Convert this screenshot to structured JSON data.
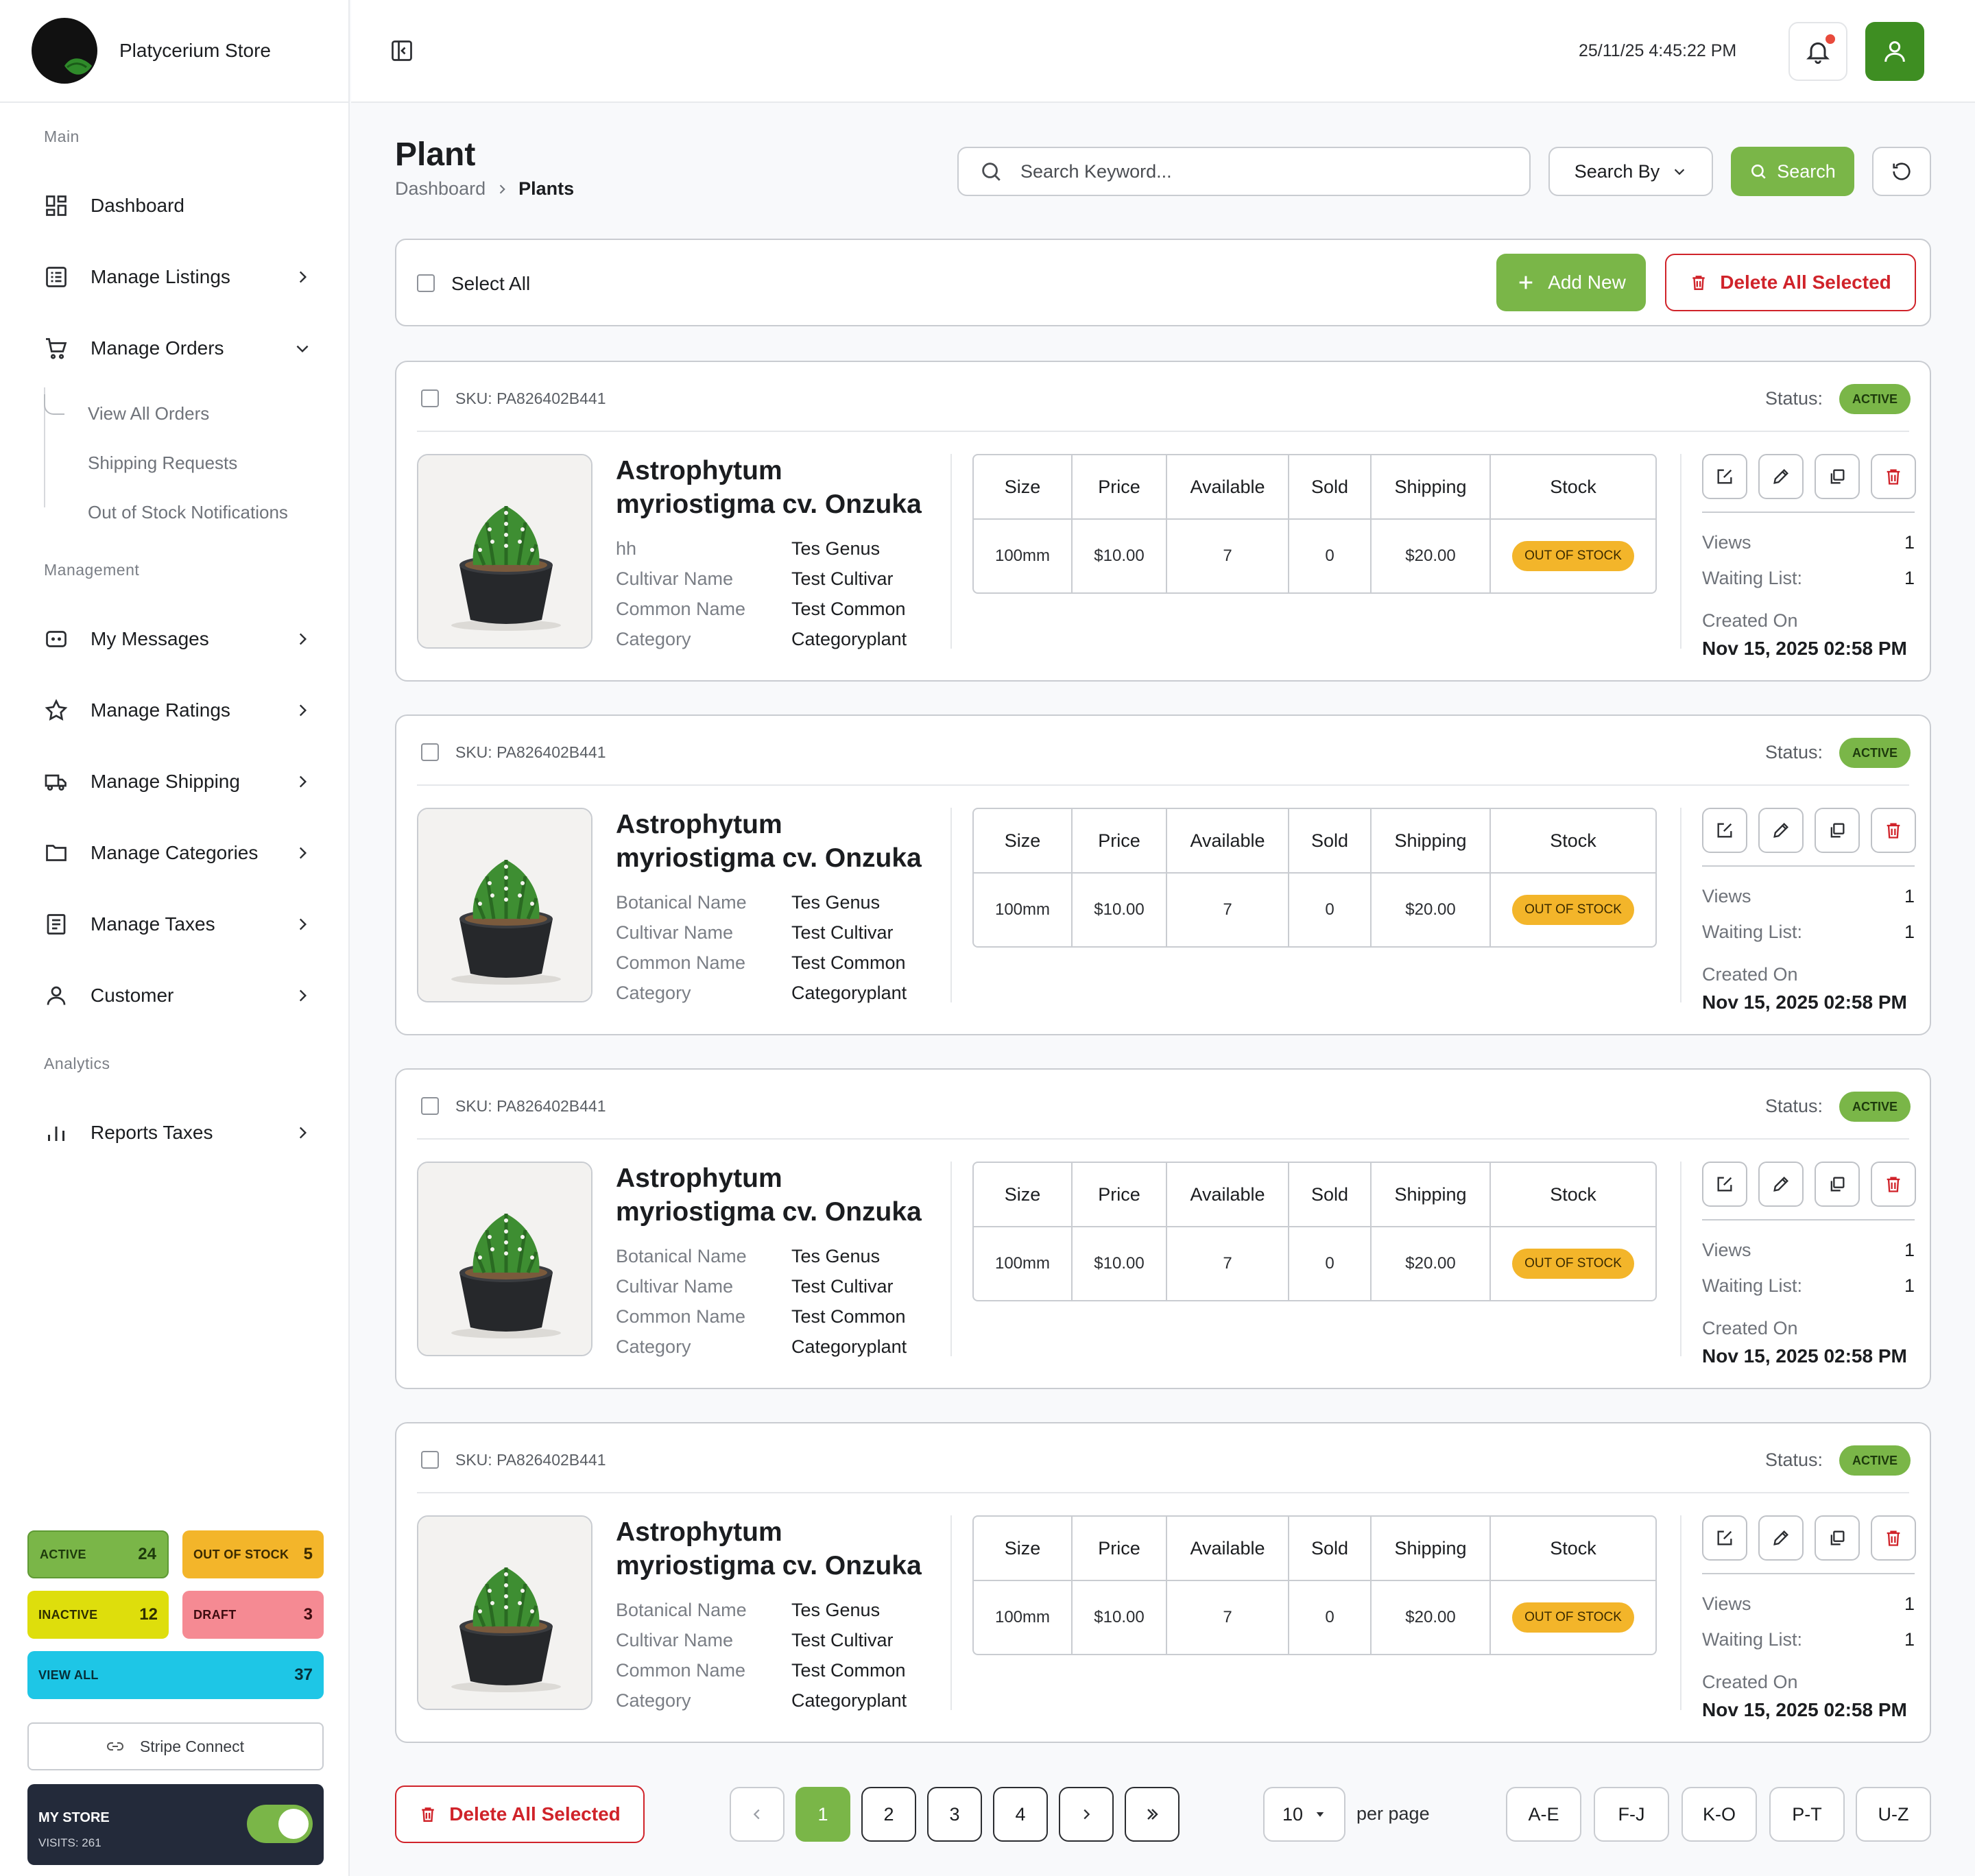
{
  "app": {
    "store_name": "Platycerium Store"
  },
  "topbar": {
    "datetime": "25/11/25 4:45:22 PM"
  },
  "sidebar": {
    "sections": {
      "main": "Main",
      "management": "Management",
      "analytics": "Analytics"
    },
    "items": [
      {
        "label": "Dashboard"
      },
      {
        "label": "Manage Listings"
      },
      {
        "label": "Manage Orders"
      },
      {
        "label": "My Messages"
      },
      {
        "label": "Manage Ratings"
      },
      {
        "label": "Manage Shipping"
      },
      {
        "label": "Manage Categories"
      },
      {
        "label": "Manage Taxes"
      },
      {
        "label": "Customer"
      },
      {
        "label": "Reports Taxes"
      }
    ],
    "orders_sub": [
      "View All Orders",
      "Shipping Requests",
      "Out of Stock Notifications"
    ],
    "stats": {
      "active": {
        "label": "ACTIVE",
        "value": "24",
        "color": "#7ab648"
      },
      "out_of_stock": {
        "label": "OUT OF STOCK",
        "value": "5",
        "color": "#f3b52a"
      },
      "inactive": {
        "label": "INACTIVE",
        "value": "12",
        "color": "#dede0c"
      },
      "draft": {
        "label": "DRAFT",
        "value": "3",
        "color": "#f58a93"
      },
      "view_all": {
        "label": "VIEW ALL",
        "value": "37",
        "color": "#1ec6e6"
      }
    },
    "stripe": "Stripe Connect",
    "my_store": {
      "title": "MY STORE",
      "visits": "VISITS: 261",
      "enabled": true
    }
  },
  "page": {
    "title": "Plant",
    "breadcrumb": [
      "Dashboard",
      "Plants"
    ],
    "search_placeholder": "Search Keyword...",
    "search_by": "Search By",
    "search_btn": "Search",
    "select_all": "Select All",
    "add_new": "Add New",
    "delete_all": "Delete All Selected"
  },
  "table_headers": [
    "Size",
    "Price",
    "Available",
    "Sold",
    "Shipping",
    "Stock"
  ],
  "labels": {
    "status": "Status:",
    "views": "Views",
    "waiting": "Waiting List:",
    "created": "Created On"
  },
  "products": [
    {
      "sku": "SKU: PA826402B441",
      "status": "ACTIVE",
      "name": "Astrophytum myriostigma cv. Onzuka",
      "attrs": [
        [
          "hh",
          "Tes Genus"
        ],
        [
          "Cultivar Name",
          "Test Cultivar"
        ],
        [
          "Common Name",
          "Test Common"
        ],
        [
          "Category",
          "Categoryplant"
        ]
      ],
      "row": [
        "100mm",
        "$10.00",
        "7",
        "0",
        "$20.00"
      ],
      "stock": "OUT OF STOCK",
      "views": "1",
      "waiting": "1",
      "created": "Nov 15, 2025 02:58 PM"
    },
    {
      "sku": "SKU: PA826402B441",
      "status": "ACTIVE",
      "name": "Astrophytum myriostigma cv. Onzuka",
      "attrs": [
        [
          "Botanical Name",
          "Tes Genus"
        ],
        [
          "Cultivar Name",
          "Test Cultivar"
        ],
        [
          "Common Name",
          "Test Common"
        ],
        [
          "Category",
          "Categoryplant"
        ]
      ],
      "row": [
        "100mm",
        "$10.00",
        "7",
        "0",
        "$20.00"
      ],
      "stock": "OUT OF STOCK",
      "views": "1",
      "waiting": "1",
      "created": "Nov 15, 2025 02:58 PM"
    },
    {
      "sku": "SKU: PA826402B441",
      "status": "ACTIVE",
      "name": "Astrophytum myriostigma cv. Onzuka",
      "attrs": [
        [
          "Botanical Name",
          "Tes Genus"
        ],
        [
          "Cultivar Name",
          "Test Cultivar"
        ],
        [
          "Common Name",
          "Test Common"
        ],
        [
          "Category",
          "Categoryplant"
        ]
      ],
      "row": [
        "100mm",
        "$10.00",
        "7",
        "0",
        "$20.00"
      ],
      "stock": "OUT OF STOCK",
      "views": "1",
      "waiting": "1",
      "created": "Nov 15, 2025 02:58 PM"
    },
    {
      "sku": "SKU: PA826402B441",
      "status": "ACTIVE",
      "name": "Astrophytum myriostigma cv. Onzuka",
      "attrs": [
        [
          "Botanical Name",
          "Tes Genus"
        ],
        [
          "Cultivar Name",
          "Test Cultivar"
        ],
        [
          "Common Name",
          "Test Common"
        ],
        [
          "Category",
          "Categoryplant"
        ]
      ],
      "row": [
        "100mm",
        "$10.00",
        "7",
        "0",
        "$20.00"
      ],
      "stock": "OUT OF STOCK",
      "views": "1",
      "waiting": "1",
      "created": "Nov 15, 2025 02:58 PM"
    }
  ],
  "pagination": {
    "pages": [
      "1",
      "2",
      "3",
      "4"
    ],
    "current": "1",
    "per_page": "10",
    "per_page_label": "per page",
    "alpha": [
      "A-E",
      "F-J",
      "K-O",
      "P-T",
      "U-Z"
    ]
  }
}
